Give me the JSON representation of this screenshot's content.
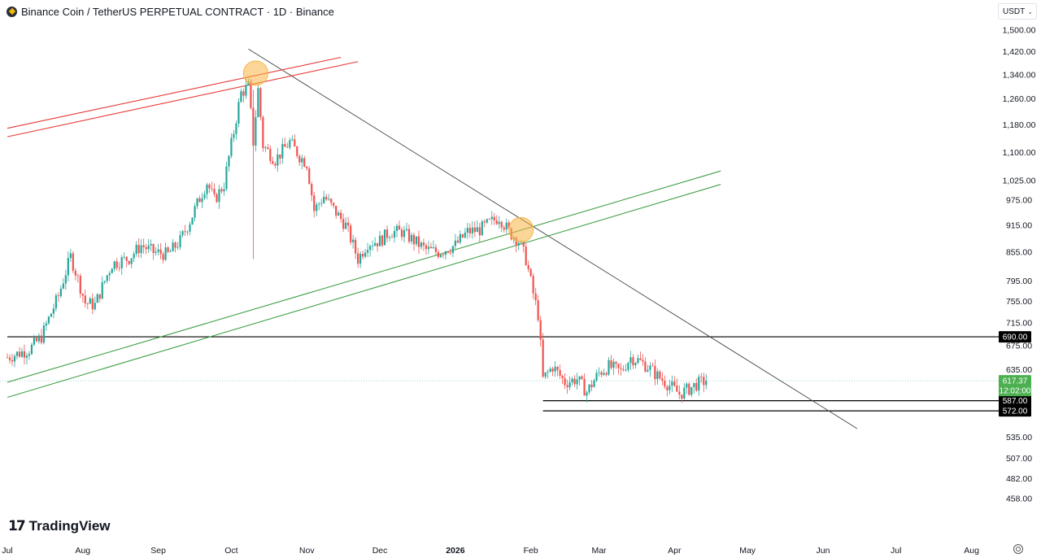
{
  "header": {
    "title": "Binance Coin / TetherUS PERPETUAL CONTRACT · 1D · Binance",
    "icon": "binance-coin-icon"
  },
  "currency_selector": {
    "label": "USDT",
    "icon": "chevron-down-icon"
  },
  "branding": {
    "logo_mark": "17",
    "name": "TradingView"
  },
  "colors": {
    "up": "#26a69a",
    "down": "#ef5350",
    "red_line": "#e53935",
    "green_line": "#43a047",
    "black_line": "#000000",
    "trend_line": "#444444",
    "marker": "#f7b544",
    "price_tag": "#4caf50"
  },
  "chart_data": {
    "type": "candlestick",
    "symbol": "Binance Coin / TetherUS PERPETUAL CONTRACT",
    "interval": "1D",
    "exchange": "Binance",
    "y_axis": {
      "scale": "log",
      "ticks": [
        1500,
        1420,
        1340,
        1260,
        1180,
        1100,
        1025,
        975,
        915,
        855,
        795,
        755,
        715,
        675,
        635,
        535,
        507,
        482,
        458
      ],
      "tick_labels": [
        "1,500.00",
        "1,420.00",
        "1,340.00",
        "1,260.00",
        "1,180.00",
        "1,100.00",
        "1,025.00",
        "975.00",
        "915.00",
        "855.00",
        "795.00",
        "755.00",
        "715.00",
        "675.00",
        "635.00",
        "535.00",
        "507.00",
        "482.00",
        "458.00"
      ]
    },
    "x_axis": {
      "range": [
        "2025-07-01",
        "2026-08-20"
      ],
      "ticks": [
        {
          "date": "2025-07-01",
          "label": "Jul",
          "bold": false
        },
        {
          "date": "2025-08-01",
          "label": "Aug",
          "bold": false
        },
        {
          "date": "2025-09-01",
          "label": "Sep",
          "bold": false
        },
        {
          "date": "2025-10-01",
          "label": "Oct",
          "bold": false
        },
        {
          "date": "2025-11-01",
          "label": "Nov",
          "bold": false
        },
        {
          "date": "2025-12-01",
          "label": "Dec",
          "bold": false
        },
        {
          "date": "2026-01-01",
          "label": "2026",
          "bold": true
        },
        {
          "date": "2026-02-01",
          "label": "Feb",
          "bold": false
        },
        {
          "date": "2026-03-01",
          "label": "Mar",
          "bold": false
        },
        {
          "date": "2026-04-01",
          "label": "Apr",
          "bold": false
        },
        {
          "date": "2026-05-01",
          "label": "May",
          "bold": false
        },
        {
          "date": "2026-06-01",
          "label": "Jun",
          "bold": false
        },
        {
          "date": "2026-07-01",
          "label": "Jul",
          "bold": false
        },
        {
          "date": "2026-08-01",
          "label": "Aug",
          "bold": false
        }
      ]
    },
    "close_path": [
      [
        "2025-07-01",
        655
      ],
      [
        "2025-07-10",
        668
      ],
      [
        "2025-07-15",
        690
      ],
      [
        "2025-07-22",
        765
      ],
      [
        "2025-07-27",
        845
      ],
      [
        "2025-08-02",
        752
      ],
      [
        "2025-08-06",
        748
      ],
      [
        "2025-08-13",
        830
      ],
      [
        "2025-08-20",
        842
      ],
      [
        "2025-08-25",
        870
      ],
      [
        "2025-08-30",
        855
      ],
      [
        "2025-09-05",
        850
      ],
      [
        "2025-09-10",
        880
      ],
      [
        "2025-09-14",
        925
      ],
      [
        "2025-09-18",
        980
      ],
      [
        "2025-09-21",
        1020
      ],
      [
        "2025-09-24",
        975
      ],
      [
        "2025-09-28",
        1015
      ],
      [
        "2025-10-02",
        1160
      ],
      [
        "2025-10-05",
        1280
      ],
      [
        "2025-10-08",
        1300
      ],
      [
        "2025-10-10",
        1130
      ],
      [
        "2025-10-12",
        1290
      ],
      [
        "2025-10-14",
        1120
      ],
      [
        "2025-10-19",
        1080
      ],
      [
        "2025-10-25",
        1130
      ],
      [
        "2025-10-29",
        1090
      ],
      [
        "2025-11-01",
        1070
      ],
      [
        "2025-11-04",
        950
      ],
      [
        "2025-11-08",
        985
      ],
      [
        "2025-11-13",
        945
      ],
      [
        "2025-11-17",
        915
      ],
      [
        "2025-11-22",
        840
      ],
      [
        "2025-11-26",
        875
      ],
      [
        "2025-12-01",
        880
      ],
      [
        "2025-12-05",
        900
      ],
      [
        "2025-12-10",
        900
      ],
      [
        "2025-12-15",
        880
      ],
      [
        "2025-12-20",
        860
      ],
      [
        "2025-12-25",
        855
      ],
      [
        "2026-01-01",
        870
      ],
      [
        "2026-01-06",
        900
      ],
      [
        "2026-01-11",
        905
      ],
      [
        "2026-01-15",
        920
      ],
      [
        "2026-01-19",
        935
      ],
      [
        "2026-01-23",
        900
      ],
      [
        "2026-01-27",
        880
      ],
      [
        "2026-01-30",
        840
      ],
      [
        "2026-02-02",
        770
      ],
      [
        "2026-02-04",
        730
      ],
      [
        "2026-02-06",
        620
      ],
      [
        "2026-02-10",
        640
      ],
      [
        "2026-02-15",
        615
      ],
      [
        "2026-02-20",
        620
      ],
      [
        "2026-02-24",
        600
      ],
      [
        "2026-03-01",
        630
      ],
      [
        "2026-03-05",
        640
      ],
      [
        "2026-03-10",
        632
      ],
      [
        "2026-03-14",
        655
      ],
      [
        "2026-03-17",
        650
      ],
      [
        "2026-03-21",
        640
      ],
      [
        "2026-03-25",
        625
      ],
      [
        "2026-03-30",
        610
      ],
      [
        "2026-04-03",
        597
      ],
      [
        "2026-04-07",
        605
      ],
      [
        "2026-04-10",
        612
      ],
      [
        "2026-04-14",
        617.37
      ]
    ],
    "horizontal_levels": [
      {
        "value": 690.0,
        "label": "690.00",
        "from": "2025-07-01"
      },
      {
        "value": 587.0,
        "label": "587.00",
        "from": "2026-02-06"
      },
      {
        "value": 572.0,
        "label": "572.00",
        "from": "2026-02-06"
      }
    ],
    "last_price": {
      "value": 617.37,
      "label": "617.37",
      "countdown": "12:02:00"
    },
    "trend_lines": [
      {
        "name": "descending",
        "color": "#444444",
        "points": [
          [
            "2025-10-08",
            1430
          ],
          [
            "2026-06-15",
            547
          ]
        ]
      },
      {
        "name": "red-upper",
        "color": "#e53935",
        "points": [
          [
            "2025-07-01",
            1170
          ],
          [
            "2025-11-15",
            1400
          ]
        ]
      },
      {
        "name": "red-lower",
        "color": "#e53935",
        "points": [
          [
            "2025-07-01",
            1145
          ],
          [
            "2025-11-22",
            1385
          ]
        ]
      },
      {
        "name": "green-upper",
        "color": "#43a047",
        "points": [
          [
            "2025-07-01",
            615
          ],
          [
            "2026-04-20",
            1050
          ]
        ]
      },
      {
        "name": "green-lower",
        "color": "#43a047",
        "points": [
          [
            "2025-07-01",
            592
          ],
          [
            "2026-04-20",
            1015
          ]
        ]
      }
    ],
    "markers": [
      {
        "date": "2025-10-11",
        "value": 1345
      },
      {
        "date": "2026-01-28",
        "value": 905
      }
    ]
  }
}
